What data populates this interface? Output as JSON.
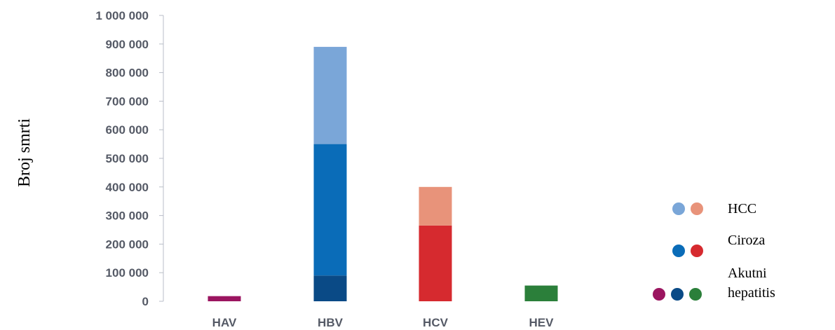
{
  "chart_data": {
    "type": "bar",
    "stacked": true,
    "ylabel": "Broj smrti",
    "xlabel": "",
    "ylim": [
      0,
      1000000
    ],
    "yticks": [
      0,
      100000,
      200000,
      300000,
      400000,
      500000,
      600000,
      700000,
      800000,
      900000,
      1000000
    ],
    "ytick_labels": [
      "0",
      "100 000",
      "200 000",
      "300 000",
      "400 000",
      "500 000",
      "600 000",
      "700 000",
      "800 000",
      "900 000",
      "1 000 000"
    ],
    "categories": [
      "HAV",
      "HBV",
      "HCV",
      "HEV"
    ],
    "series": [
      {
        "key": "akutni",
        "values": [
          18000,
          90000,
          0,
          55000
        ],
        "colors": [
          "#9b1560",
          "#0a4a86",
          "#d62a2f",
          "#2b7f3a"
        ]
      },
      {
        "key": "ciroza",
        "values": [
          0,
          460000,
          265000,
          0
        ],
        "colors": [
          "#9b1560",
          "#0a6cb8",
          "#d62a2f",
          "#2b7f3a"
        ]
      },
      {
        "key": "hcc",
        "values": [
          0,
          340000,
          135000,
          0
        ],
        "colors": [
          "#9b1560",
          "#7aa6d8",
          "#e8937a",
          "#2b7f3a"
        ]
      }
    ],
    "legend": {
      "placement": "right",
      "entries": [
        {
          "label": "HCC",
          "colors": [
            "#7aa6d8",
            "#e8937a"
          ]
        },
        {
          "label": "Ciroza",
          "colors": [
            "#0a6cb8",
            "#d62a2f"
          ]
        },
        {
          "label_lines": [
            "Akutni",
            "hepatitis"
          ],
          "colors": [
            "#9b1560",
            "#0a4a86",
            "#2b7f3a"
          ]
        }
      ]
    }
  }
}
